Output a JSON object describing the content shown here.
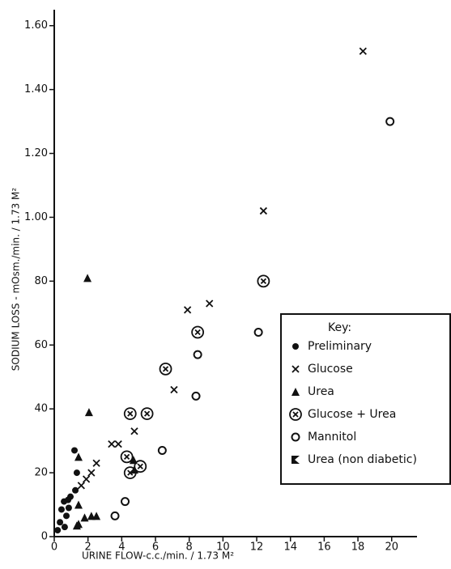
{
  "chart_data": {
    "type": "scatter",
    "x_label": "URINE FLOW-c.c./min. / 1.73 M²",
    "y_label": "SODIUM LOSS - mOsm./min. / 1.73 M²",
    "legend_title": "Key:",
    "legend_position": "right",
    "xlim": [
      0,
      21.5
    ],
    "ylim": [
      0,
      1.65
    ],
    "xticks": [
      0,
      2,
      4,
      6,
      8,
      10,
      12,
      14,
      16,
      18,
      20
    ],
    "yticks": [
      0,
      {
        "value": 0.2,
        "label": "20"
      },
      {
        "value": 0.4,
        "label": "40"
      },
      {
        "value": 0.6,
        "label": "60"
      },
      {
        "value": 0.8,
        "label": "80"
      },
      {
        "value": 1.0,
        "label": "1.00"
      },
      {
        "value": 1.2,
        "label": "1.20"
      },
      {
        "value": 1.4,
        "label": "1.40"
      },
      {
        "value": 1.6,
        "label": "1.60"
      }
    ],
    "series": [
      {
        "name": "Preliminary",
        "marker": "filled-circle",
        "color": "#111",
        "x": [
          1.2,
          1.34,
          1.25,
          0.86,
          0.72,
          0.43,
          0.34,
          0.62,
          0.96,
          0.2,
          0.58,
          0.82
        ],
        "y": [
          0.27,
          0.2,
          0.145,
          0.09,
          0.065,
          0.085,
          0.045,
          0.03,
          0.125,
          0.02,
          0.11,
          0.115
        ]
      },
      {
        "name": "Glucose",
        "marker": "x",
        "color": "#111",
        "x": [
          18.3,
          12.4,
          9.2,
          7.9,
          7.1,
          3.4,
          3.8,
          4.75,
          2.5,
          2.2,
          1.9,
          1.6
        ],
        "y": [
          1.52,
          1.02,
          0.73,
          0.71,
          0.46,
          0.29,
          0.29,
          0.33,
          0.23,
          0.2,
          0.18,
          0.16
        ]
      },
      {
        "name": "Urea",
        "marker": "triangle",
        "color": "#111",
        "x": [
          1.97,
          2.06,
          1.44,
          1.44,
          1.44,
          1.34,
          1.8,
          2.2,
          2.5,
          4.7,
          4.75
        ],
        "y": [
          0.81,
          0.39,
          0.25,
          0.1,
          0.04,
          0.035,
          0.06,
          0.065,
          0.065,
          0.24,
          0.21
        ]
      },
      {
        "name": "Glucose + Urea",
        "marker": "circled-x",
        "color": "#111",
        "x": [
          4.5,
          5.5,
          6.6,
          8.5,
          12.4,
          4.3,
          4.5,
          5.1
        ],
        "y": [
          0.385,
          0.385,
          0.525,
          0.64,
          0.8,
          0.25,
          0.2,
          0.22
        ]
      },
      {
        "name": "Mannitol",
        "marker": "circle",
        "color": "#111",
        "x": [
          19.9,
          12.1,
          8.5,
          8.4,
          6.4,
          4.2,
          3.6
        ],
        "y": [
          1.3,
          0.64,
          0.57,
          0.44,
          0.27,
          0.11,
          0.065
        ]
      },
      {
        "name": "Urea (non diabetic)",
        "marker": "bowtie",
        "color": "#111",
        "x": [],
        "y": []
      }
    ]
  }
}
